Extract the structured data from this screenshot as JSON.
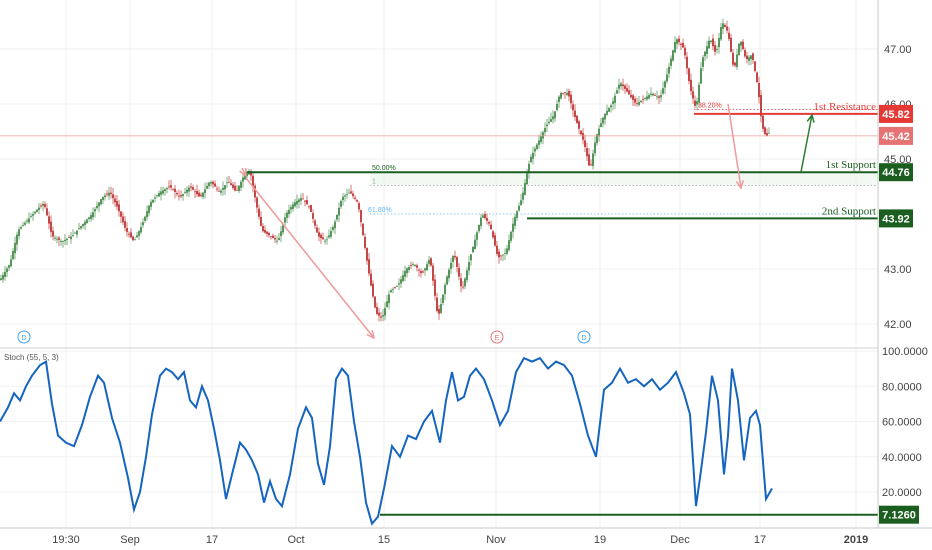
{
  "colors": {
    "candle_up": "#2e7d32",
    "candle_down": "#b71c1c",
    "support": "#1b5e20",
    "resistance": "#e53935",
    "arrow_pink": "#ef9a9a",
    "arrow_green": "#2e7d32",
    "stoch_line": "#1565c0",
    "fib_blue": "#64b5f6",
    "axis_text": "#444444"
  },
  "chart_data": [
    {
      "type": "candlestick",
      "y_axis": {
        "ticks": [
          "47.00",
          "46.00",
          "45.00",
          "43.00",
          "42.00"
        ],
        "ylim": [
          41.7,
          47.8
        ]
      },
      "x_axis": {
        "ticks": [
          "19:30",
          "Sep",
          "17",
          "Oct",
          "15",
          "Nov",
          "19",
          "Dec",
          "17",
          "2019"
        ]
      },
      "price_path": [
        [
          0,
          42.8
        ],
        [
          10,
          43.1
        ],
        [
          18,
          43.7
        ],
        [
          28,
          43.9
        ],
        [
          38,
          44.1
        ],
        [
          44,
          44.2
        ],
        [
          52,
          43.6
        ],
        [
          62,
          43.5
        ],
        [
          72,
          43.6
        ],
        [
          82,
          43.8
        ],
        [
          92,
          44.0
        ],
        [
          102,
          44.3
        ],
        [
          110,
          44.4
        ],
        [
          118,
          44.1
        ],
        [
          126,
          43.7
        ],
        [
          134,
          43.5
        ],
        [
          142,
          43.8
        ],
        [
          150,
          44.2
        ],
        [
          160,
          44.4
        ],
        [
          170,
          44.5
        ],
        [
          180,
          44.3
        ],
        [
          190,
          44.5
        ],
        [
          200,
          44.3
        ],
        [
          210,
          44.6
        ],
        [
          220,
          44.4
        ],
        [
          228,
          44.6
        ],
        [
          236,
          44.4
        ],
        [
          244,
          44.7
        ],
        [
          250,
          44.8
        ],
        [
          256,
          44.2
        ],
        [
          262,
          43.7
        ],
        [
          270,
          43.6
        ],
        [
          278,
          43.5
        ],
        [
          286,
          44.0
        ],
        [
          294,
          44.2
        ],
        [
          302,
          44.3
        ],
        [
          310,
          44.1
        ],
        [
          318,
          43.6
        ],
        [
          326,
          43.5
        ],
        [
          334,
          43.8
        ],
        [
          342,
          44.3
        ],
        [
          350,
          44.4
        ],
        [
          358,
          44.2
        ],
        [
          364,
          43.5
        ],
        [
          370,
          42.8
        ],
        [
          376,
          42.2
        ],
        [
          382,
          42.1
        ],
        [
          390,
          42.6
        ],
        [
          398,
          42.7
        ],
        [
          406,
          43.0
        ],
        [
          414,
          43.1
        ],
        [
          422,
          42.9
        ],
        [
          430,
          43.2
        ],
        [
          438,
          42.1
        ],
        [
          446,
          42.8
        ],
        [
          454,
          43.3
        ],
        [
          462,
          42.6
        ],
        [
          470,
          43.2
        ],
        [
          476,
          43.6
        ],
        [
          482,
          44.0
        ],
        [
          490,
          43.8
        ],
        [
          498,
          43.2
        ],
        [
          506,
          43.3
        ],
        [
          514,
          43.9
        ],
        [
          522,
          44.3
        ],
        [
          530,
          45.0
        ],
        [
          538,
          45.3
        ],
        [
          546,
          45.6
        ],
        [
          554,
          45.8
        ],
        [
          560,
          46.2
        ],
        [
          568,
          46.2
        ],
        [
          576,
          45.7
        ],
        [
          584,
          45.3
        ],
        [
          590,
          44.8
        ],
        [
          596,
          45.4
        ],
        [
          604,
          45.8
        ],
        [
          612,
          46.0
        ],
        [
          620,
          46.4
        ],
        [
          628,
          46.2
        ],
        [
          636,
          46.0
        ],
        [
          644,
          46.1
        ],
        [
          652,
          46.2
        ],
        [
          660,
          46.1
        ],
        [
          668,
          46.6
        ],
        [
          676,
          47.2
        ],
        [
          684,
          47.0
        ],
        [
          690,
          46.3
        ],
        [
          696,
          45.9
        ],
        [
          702,
          46.8
        ],
        [
          710,
          47.2
        ],
        [
          716,
          46.9
        ],
        [
          722,
          47.5
        ],
        [
          728,
          47.3
        ],
        [
          734,
          46.6
        ],
        [
          740,
          47.2
        ],
        [
          746,
          46.8
        ],
        [
          752,
          46.9
        ],
        [
          758,
          46.3
        ],
        [
          762,
          45.6
        ],
        [
          766,
          45.4
        ],
        [
          770,
          45.5
        ]
      ],
      "levels": [
        {
          "label": "1st Resistance",
          "value": "45.82",
          "y": 45.82,
          "x_start": 694
        },
        {
          "label": "1st Support",
          "value": "44.76",
          "y": 44.76,
          "x_start": 246
        },
        {
          "label": "2nd Support",
          "value": "43.92",
          "y": 43.92,
          "x_start": 527
        }
      ],
      "last_price": {
        "value": "45.42",
        "y": 45.42
      },
      "fib_labels": [
        {
          "text": "38.20%",
          "y": 45.9
        },
        {
          "text": "50.00%",
          "y": 44.76
        },
        {
          "text": "1",
          "y": 44.52
        },
        {
          "text": "61.80%",
          "y": 44.0
        }
      ],
      "event_markers": [
        {
          "letter": "D",
          "x": 24
        },
        {
          "letter": "E",
          "x": 497
        },
        {
          "letter": "D",
          "x": 584
        }
      ]
    },
    {
      "type": "line",
      "legend": "Stoch (55, 5, 3)",
      "y_axis": {
        "ticks": [
          "100.0000",
          "80.0000",
          "60.0000",
          "40.0000",
          "20.0000"
        ],
        "ylim": [
          0,
          100
        ]
      },
      "series": [
        {
          "x": [
            0,
            8,
            14,
            20,
            26,
            32,
            40,
            46,
            52,
            58,
            66,
            74,
            82,
            90,
            98,
            104,
            112,
            120,
            128,
            134,
            140,
            146,
            152,
            160,
            166,
            172,
            178,
            184,
            190,
            196,
            202,
            208,
            214,
            220,
            226,
            232,
            240,
            246,
            252,
            258,
            264,
            270,
            276,
            282,
            290,
            298,
            306,
            312,
            318,
            324,
            330,
            336,
            342,
            348,
            354,
            360,
            366,
            372,
            378,
            384,
            392,
            400,
            408,
            416,
            424,
            432,
            440,
            446,
            452,
            458,
            464,
            470,
            476,
            484,
            492,
            500,
            508,
            516,
            524,
            532,
            540,
            548,
            556,
            564,
            572,
            580,
            588,
            596,
            604,
            612,
            620,
            628,
            636,
            644,
            652,
            660,
            668,
            676,
            684,
            690,
            696,
            700,
            706,
            712,
            718,
            724,
            728,
            732,
            738,
            744,
            750,
            756,
            760,
            766,
            772
          ],
          "values": [
            60,
            68,
            76,
            72,
            80,
            86,
            92,
            94,
            70,
            52,
            48,
            46,
            58,
            74,
            86,
            82,
            62,
            48,
            28,
            10,
            20,
            40,
            64,
            86,
            90,
            88,
            84,
            88,
            72,
            68,
            80,
            72,
            56,
            38,
            16,
            30,
            48,
            44,
            38,
            30,
            14,
            26,
            16,
            12,
            30,
            56,
            68,
            62,
            36,
            24,
            46,
            84,
            90,
            86,
            60,
            40,
            14,
            2,
            6,
            22,
            46,
            40,
            52,
            50,
            60,
            66,
            48,
            72,
            88,
            72,
            74,
            86,
            90,
            84,
            72,
            58,
            66,
            88,
            96,
            94,
            96,
            90,
            94,
            92,
            86,
            70,
            52,
            40,
            78,
            82,
            90,
            82,
            84,
            80,
            84,
            78,
            82,
            88,
            76,
            64,
            12,
            28,
            54,
            86,
            72,
            30,
            52,
            90,
            72,
            38,
            62,
            66,
            58,
            16,
            22
          ]
        }
      ],
      "level": {
        "value": "7.1260",
        "y": 7.126,
        "x_start": 380
      }
    }
  ]
}
